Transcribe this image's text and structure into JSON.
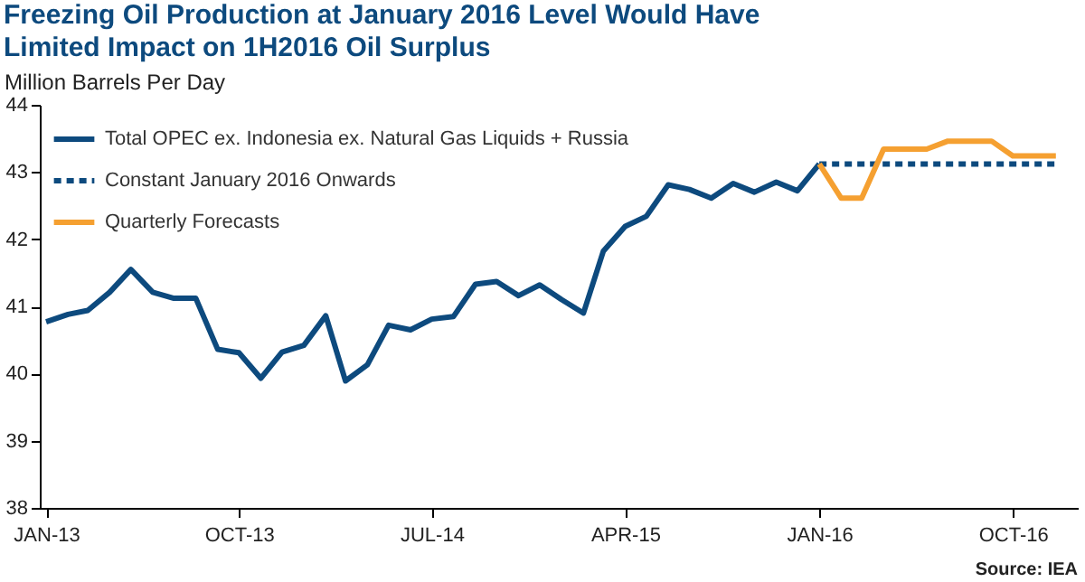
{
  "chart_data": {
    "type": "line",
    "title": "Freezing Oil Production at January 2016 Level Would Have Limited Impact on 1H2016 Oil Surplus",
    "ylabel": "Million Barrels Per Day",
    "annotations": [
      "Source: IEA"
    ],
    "ylim": [
      38,
      44
    ],
    "yticks": [
      38,
      39,
      40,
      41,
      42,
      43,
      44
    ],
    "xlim": [
      "2012-12-23",
      "2017-01-01"
    ],
    "xticks": [
      {
        "value": "2013-01",
        "label": "JAN-13"
      },
      {
        "value": "2013-10",
        "label": "OCT-13"
      },
      {
        "value": "2014-07",
        "label": "JUL-14"
      },
      {
        "value": "2015-04",
        "label": "APR-15"
      },
      {
        "value": "2016-01",
        "label": "JAN-16"
      },
      {
        "value": "2016-10",
        "label": "OCT-16"
      }
    ],
    "grid": false,
    "legend": "top left",
    "marker": "none",
    "series": [
      {
        "name": "Total OPEC ex. Indonesia ex. Natural Gas Liquids + Russia",
        "color": "#0d4a7e",
        "line_style": "solid",
        "x": [
          "2013-01",
          "2013-02",
          "2013-03",
          "2013-04",
          "2013-05",
          "2013-06",
          "2013-07",
          "2013-08",
          "2013-09",
          "2013-10",
          "2013-11",
          "2013-12",
          "2014-01",
          "2014-02",
          "2014-03",
          "2014-04",
          "2014-05",
          "2014-06",
          "2014-07",
          "2014-08",
          "2014-09",
          "2014-10",
          "2014-11",
          "2014-12",
          "2015-01",
          "2015-02",
          "2015-03",
          "2015-04",
          "2015-05",
          "2015-06",
          "2015-07",
          "2015-08",
          "2015-09",
          "2015-10",
          "2015-11",
          "2015-12",
          "2016-01"
        ],
        "values": [
          40.77,
          40.88,
          40.94,
          41.21,
          41.55,
          41.21,
          41.12,
          41.12,
          40.36,
          40.31,
          39.93,
          40.32,
          40.42,
          40.86,
          39.89,
          40.13,
          40.72,
          40.65,
          40.81,
          40.85,
          41.33,
          41.37,
          41.16,
          41.32,
          41.1,
          40.9,
          41.82,
          42.19,
          42.34,
          42.81,
          42.74,
          42.61,
          42.83,
          42.7,
          42.85,
          42.72,
          43.12
        ]
      },
      {
        "name": "Constant January 2016 Onwards",
        "color": "#0d4a7e",
        "line_style": "dashed",
        "x": [
          "2016-01",
          "2016-12"
        ],
        "values": [
          43.12,
          43.12
        ]
      },
      {
        "name": "Quarterly Forecasts",
        "color": "#f5a031",
        "line_style": "solid",
        "x": [
          "2016-01",
          "2016-02",
          "2016-03",
          "2016-04",
          "2016-05",
          "2016-06",
          "2016-07",
          "2016-08",
          "2016-09",
          "2016-10",
          "2016-11",
          "2016-12"
        ],
        "values": [
          43.12,
          42.61,
          42.61,
          43.34,
          43.34,
          43.34,
          43.46,
          43.46,
          43.46,
          43.24,
          43.24,
          43.24
        ]
      }
    ]
  }
}
